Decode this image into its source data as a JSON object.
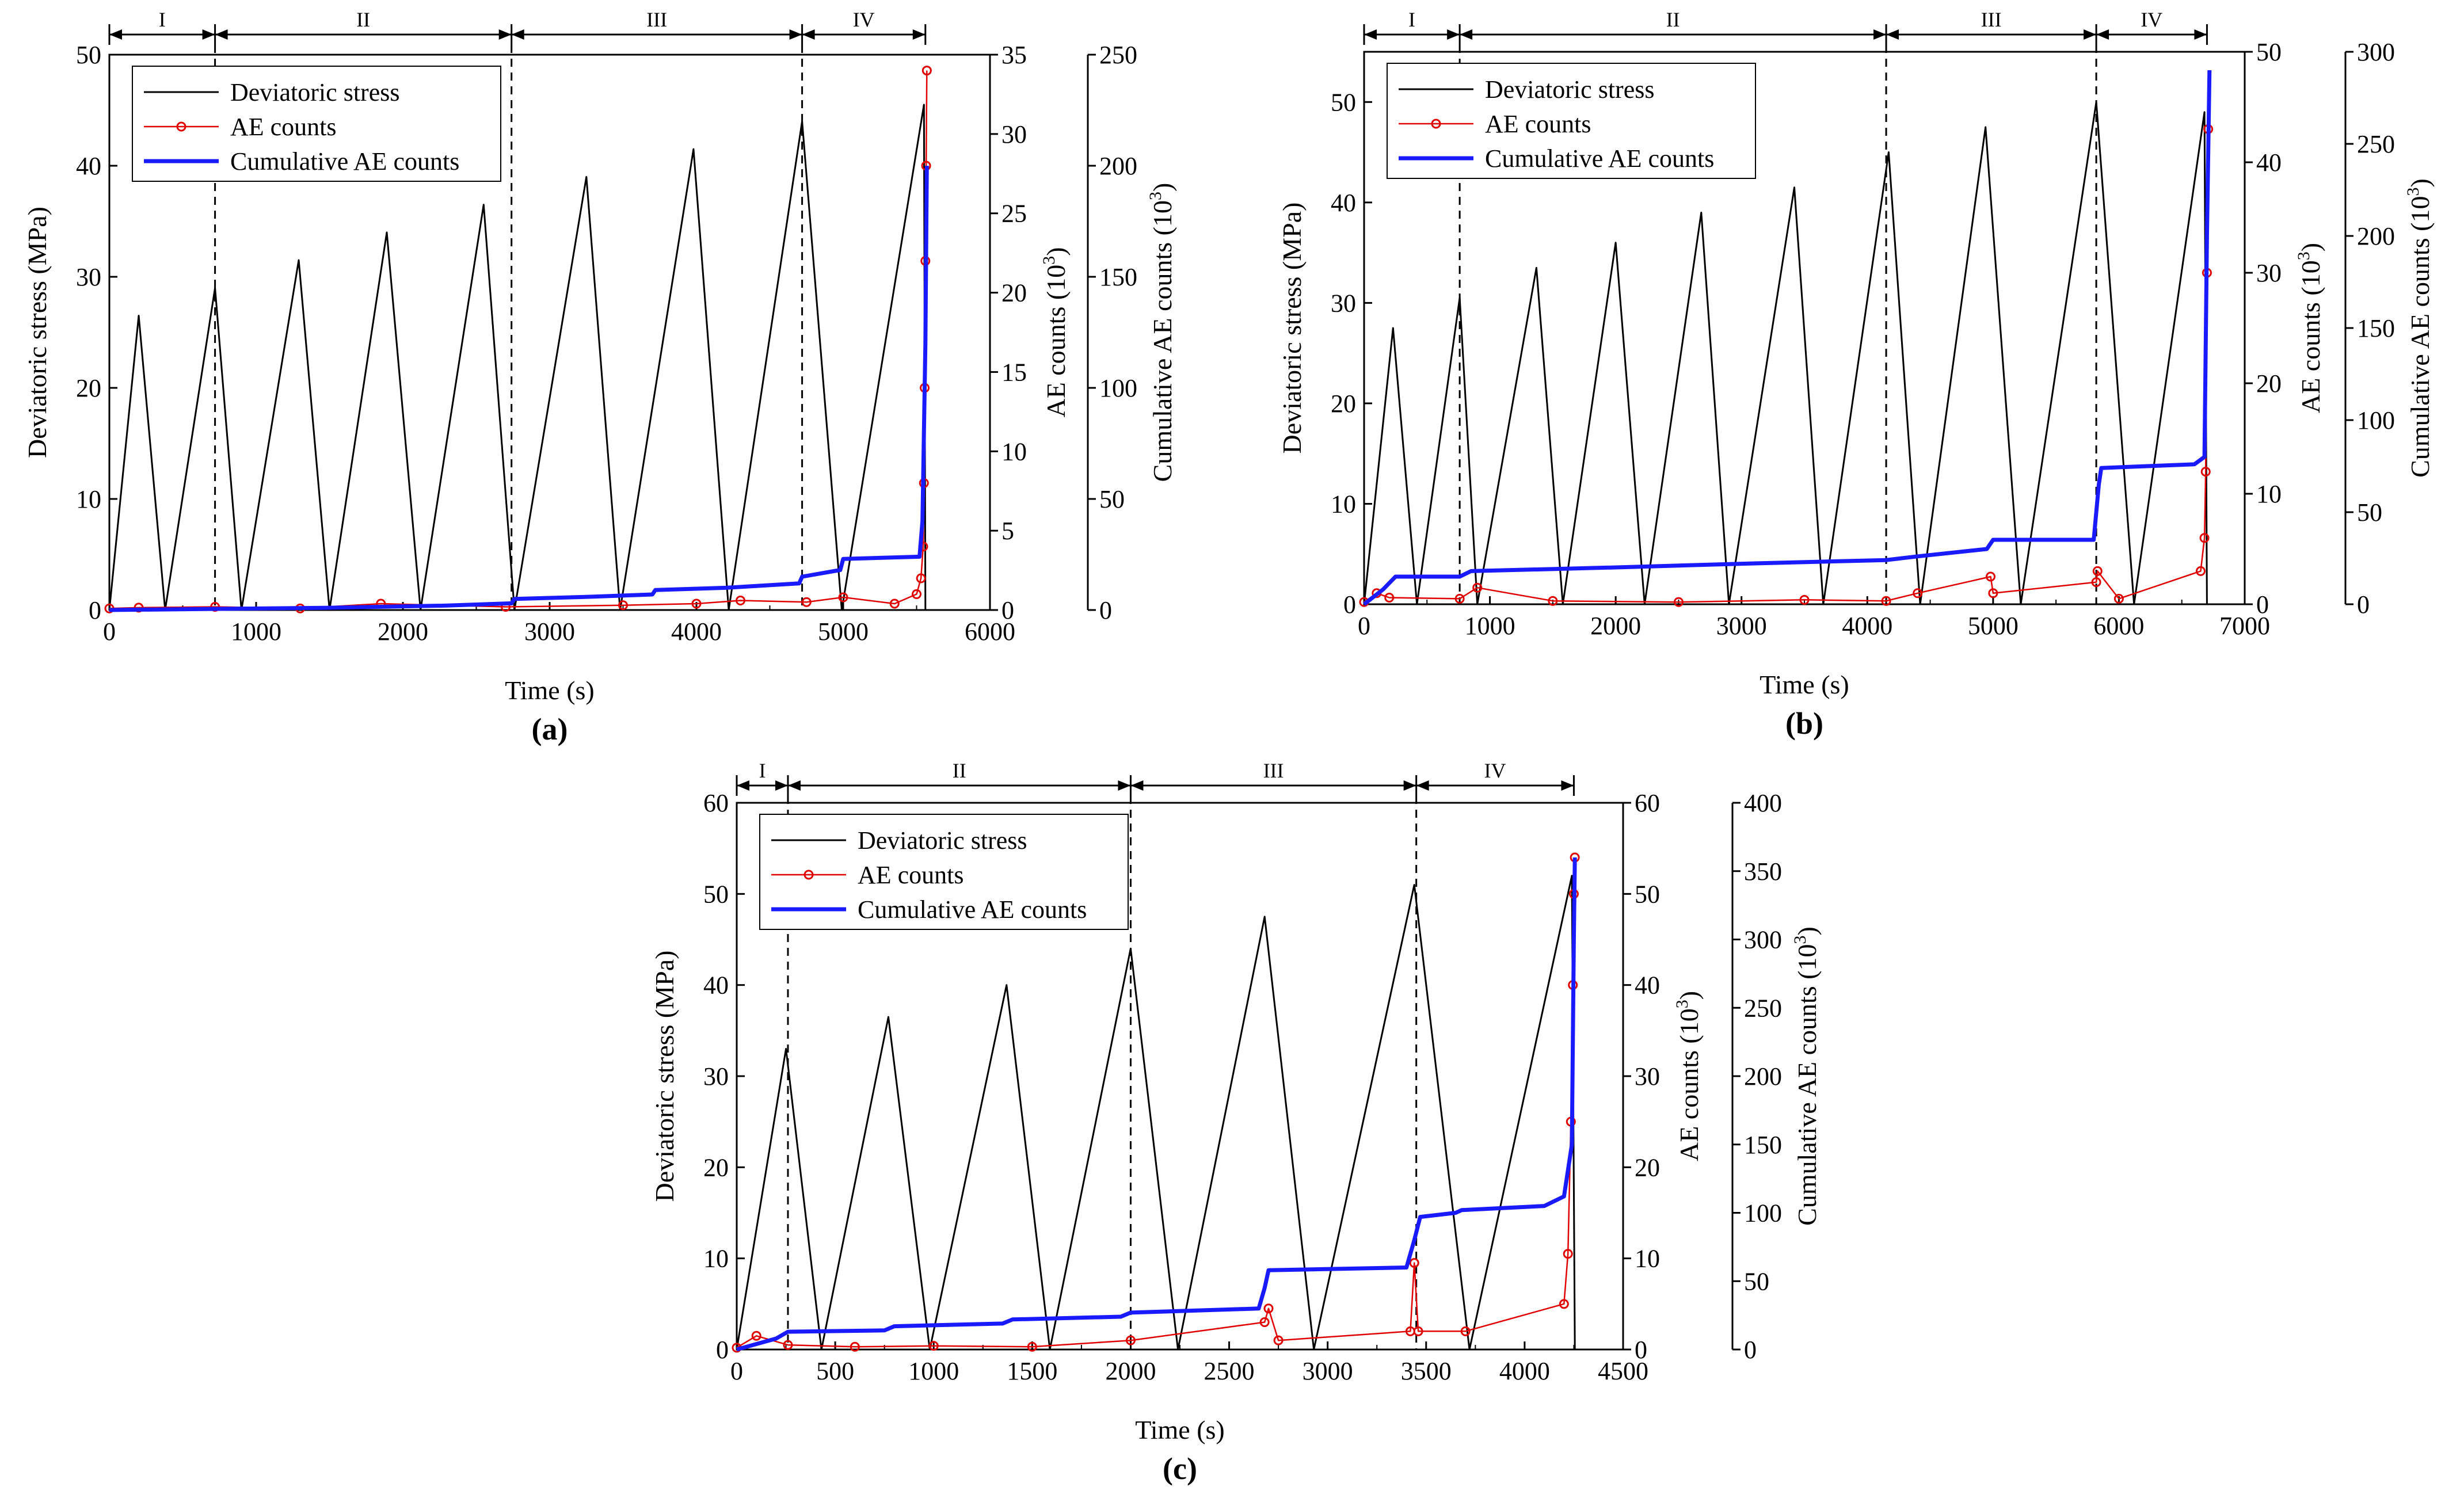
{
  "colors": {
    "stress": "#000000",
    "ae": "#e00000",
    "cumulative": "#1a1aff",
    "axis": "#000000",
    "boundary": "#000000"
  },
  "chart_data": [
    {
      "type": "line",
      "panel_label": "(a)",
      "xlabel": "Time (s)",
      "ylabel_left": "Deviatoric stress (MPa)",
      "ylabel_ae": "AE counts (10",
      "ylabel_cum": "Cumulative AE counts (10",
      "ylabel_exp": "3",
      "ylabel_close": ")",
      "xlim": [
        0,
        6000
      ],
      "x_ticks": [
        0,
        1000,
        2000,
        3000,
        4000,
        5000,
        6000
      ],
      "x_tick_labels": [
        "0",
        "1000",
        "2000",
        "3000",
        "4000",
        "5000",
        "6000"
      ],
      "ylim_left": [
        0,
        50
      ],
      "y_left_ticks": [
        0,
        10,
        20,
        30,
        40,
        50
      ],
      "y_left_tick_labels": [
        "0",
        "10",
        "20",
        "30",
        "40",
        "50"
      ],
      "ylim_ae": [
        0,
        35
      ],
      "y_ae_ticks": [
        0,
        5,
        10,
        15,
        20,
        25,
        30,
        35
      ],
      "y_ae_tick_labels": [
        "0",
        "5",
        "10",
        "15",
        "20",
        "25",
        "30",
        "35"
      ],
      "ylim_cum": [
        0,
        250
      ],
      "y_cum_ticks": [
        0,
        50,
        100,
        150,
        200,
        250
      ],
      "y_cum_tick_labels": [
        "0",
        "50",
        "100",
        "150",
        "200",
        "250"
      ],
      "legend": [
        "Deviatoric stress",
        "AE counts",
        "Cumulative AE counts"
      ],
      "legend_position": "top-left",
      "stage_boundaries": [
        0,
        720,
        2740,
        4720,
        5560
      ],
      "stage_labels": [
        "I",
        "II",
        "III",
        "IV"
      ],
      "series": [
        {
          "name": "Deviatoric stress",
          "axis": "left",
          "x": [
            0,
            200,
            380,
            720,
            900,
            1290,
            1500,
            1890,
            2120,
            2550,
            2760,
            3250,
            3480,
            3980,
            4220,
            4720,
            4990,
            5550,
            5560
          ],
          "values": [
            0,
            26.5,
            0,
            29,
            0,
            31.5,
            0,
            34,
            0,
            36.5,
            0,
            39,
            0,
            41.5,
            0,
            44,
            0,
            45.5,
            0
          ]
        },
        {
          "name": "AE counts",
          "axis": "ae",
          "x": [
            0,
            200,
            720,
            1300,
            1850,
            2700,
            3500,
            4000,
            4300,
            4750,
            5000,
            5350,
            5500,
            5530,
            5545,
            5550,
            5555,
            5560,
            5565,
            5570
          ],
          "values": [
            0.1,
            0.15,
            0.2,
            0.1,
            0.4,
            0.2,
            0.3,
            0.4,
            0.6,
            0.5,
            0.8,
            0.4,
            1.0,
            2.0,
            4.0,
            8.0,
            14.0,
            22.0,
            28.0,
            34.0
          ]
        },
        {
          "name": "Cumulative AE counts",
          "axis": "cum",
          "x": [
            0,
            700,
            1500,
            2300,
            2740,
            2760,
            3300,
            3700,
            3720,
            4200,
            4700,
            4720,
            4980,
            5000,
            5520,
            5540,
            5560,
            5570
          ],
          "values": [
            0,
            0.5,
            1,
            2,
            3,
            5,
            6,
            7,
            9,
            10,
            12,
            15,
            18,
            23,
            24,
            40,
            120,
            200
          ]
        }
      ]
    },
    {
      "type": "line",
      "panel_label": "(b)",
      "xlabel": "Time (s)",
      "ylabel_left": "Deviatoric stress (MPa)",
      "ylabel_ae": "AE counts (10",
      "ylabel_cum": "Cumulative AE counts (10",
      "ylabel_exp": "3",
      "ylabel_close": ")",
      "xlim": [
        0,
        7000
      ],
      "x_ticks": [
        0,
        1000,
        2000,
        3000,
        4000,
        5000,
        6000,
        7000
      ],
      "x_tick_labels": [
        "0",
        "1000",
        "2000",
        "3000",
        "4000",
        "5000",
        "6000",
        "7000"
      ],
      "ylim_left": [
        0,
        55
      ],
      "y_left_ticks": [
        0,
        10,
        20,
        30,
        40,
        50
      ],
      "y_left_tick_labels": [
        "0",
        "10",
        "20",
        "30",
        "40",
        "50"
      ],
      "ylim_ae": [
        0,
        50
      ],
      "y_ae_ticks": [
        0,
        10,
        20,
        30,
        40,
        50
      ],
      "y_ae_tick_labels": [
        "0",
        "10",
        "20",
        "30",
        "40",
        "50"
      ],
      "ylim_cum": [
        0,
        300
      ],
      "y_cum_ticks": [
        0,
        50,
        100,
        150,
        200,
        250,
        300
      ],
      "y_cum_tick_labels": [
        "0",
        "50",
        "100",
        "150",
        "200",
        "250",
        "300"
      ],
      "legend": [
        "Deviatoric stress",
        "AE counts",
        "Cumulative AE counts"
      ],
      "legend_position": "top-left",
      "stage_boundaries": [
        0,
        760,
        4150,
        5820,
        6700
      ],
      "stage_labels": [
        "I",
        "II",
        "III",
        "IV"
      ],
      "series": [
        {
          "name": "Deviatoric stress",
          "axis": "left",
          "x": [
            0,
            230,
            420,
            760,
            900,
            1370,
            1580,
            2000,
            2230,
            2680,
            2900,
            3420,
            3650,
            4170,
            4420,
            4940,
            5220,
            5820,
            6120,
            6680,
            6700
          ],
          "values": [
            0,
            27.5,
            0,
            30.5,
            0,
            33.5,
            0,
            36,
            0,
            39,
            0,
            41.5,
            0,
            45,
            0,
            47.5,
            0,
            50,
            0,
            49,
            0
          ]
        },
        {
          "name": "AE counts",
          "axis": "ae",
          "x": [
            0,
            100,
            200,
            760,
            900,
            1500,
            2500,
            3500,
            4150,
            4400,
            4980,
            5000,
            5820,
            5830,
            6000,
            6650,
            6680,
            6690,
            6700,
            6710
          ],
          "values": [
            0.2,
            1.0,
            0.6,
            0.5,
            1.5,
            0.3,
            0.2,
            0.4,
            0.3,
            1.0,
            2.5,
            1.0,
            2.0,
            3.0,
            0.5,
            3.0,
            6.0,
            12.0,
            30.0,
            43.0
          ]
        },
        {
          "name": "Cumulative AE counts",
          "axis": "cum",
          "x": [
            0,
            150,
            250,
            760,
            850,
            2000,
            3000,
            4150,
            4400,
            4950,
            5000,
            5800,
            5840,
            5860,
            6600,
            6680,
            6700,
            6720
          ],
          "values": [
            0,
            8,
            15,
            15,
            18,
            20,
            22,
            24,
            26,
            30,
            35,
            35,
            65,
            74,
            76,
            80,
            200,
            290
          ]
        }
      ]
    },
    {
      "type": "line",
      "panel_label": "(c)",
      "xlabel": "Time (s)",
      "ylabel_left": "Deviatoric stress (MPa)",
      "ylabel_ae": "AE counts (10",
      "ylabel_cum": "Cumulative AE counts (10",
      "ylabel_exp": "3",
      "ylabel_close": ")",
      "xlim": [
        0,
        4500
      ],
      "x_ticks": [
        0,
        500,
        1000,
        1500,
        2000,
        2500,
        3000,
        3500,
        4000,
        4500
      ],
      "x_tick_labels": [
        "0",
        "500",
        "1000",
        "1500",
        "2000",
        "2500",
        "3000",
        "3500",
        "4000",
        "4500"
      ],
      "ylim_left": [
        0,
        60
      ],
      "y_left_ticks": [
        0,
        10,
        20,
        30,
        40,
        50,
        60
      ],
      "y_left_tick_labels": [
        "0",
        "10",
        "20",
        "30",
        "40",
        "50",
        "60"
      ],
      "ylim_ae": [
        0,
        60
      ],
      "y_ae_ticks": [
        0,
        10,
        20,
        30,
        40,
        50,
        60
      ],
      "y_ae_tick_labels": [
        "0",
        "10",
        "20",
        "30",
        "40",
        "50",
        "60"
      ],
      "ylim_cum": [
        0,
        400
      ],
      "y_cum_ticks": [
        0,
        50,
        100,
        150,
        200,
        250,
        300,
        350,
        400
      ],
      "y_cum_tick_labels": [
        "0",
        "50",
        "100",
        "150",
        "200",
        "250",
        "300",
        "350",
        "400"
      ],
      "legend": [
        "Deviatoric stress",
        "AE counts",
        "Cumulative AE counts"
      ],
      "legend_position": "top-left",
      "stage_boundaries": [
        0,
        260,
        2000,
        3450,
        4250
      ],
      "stage_labels": [
        "I",
        "II",
        "III",
        "IV"
      ],
      "series": [
        {
          "name": "Deviatoric stress",
          "axis": "left",
          "x": [
            0,
            250,
            430,
            770,
            980,
            1370,
            1590,
            2000,
            2240,
            2680,
            2930,
            3440,
            3720,
            4240,
            4255
          ],
          "values": [
            0,
            33,
            0,
            36.5,
            0,
            40,
            0,
            44,
            0,
            47.5,
            0,
            51,
            0,
            52,
            0
          ]
        },
        {
          "name": "AE counts",
          "axis": "ae",
          "x": [
            0,
            100,
            260,
            600,
            1000,
            1500,
            2000,
            2680,
            2700,
            2750,
            3420,
            3440,
            3460,
            3700,
            4200,
            4220,
            4235,
            4245,
            4250,
            4255
          ],
          "values": [
            0.2,
            1.5,
            0.5,
            0.3,
            0.4,
            0.3,
            1.0,
            3.0,
            4.5,
            1.0,
            2.0,
            9.5,
            2.0,
            2.0,
            5.0,
            10.5,
            25.0,
            40.0,
            50.0,
            54.0
          ]
        },
        {
          "name": "Cumulative AE counts",
          "axis": "cum",
          "x": [
            0,
            200,
            260,
            750,
            800,
            1350,
            1400,
            1950,
            2000,
            2650,
            2680,
            2700,
            3400,
            3440,
            3470,
            3650,
            3680,
            4100,
            4200,
            4240,
            4250,
            4255
          ],
          "values": [
            0,
            8,
            13,
            14,
            17,
            19,
            22,
            24,
            27,
            30,
            45,
            58,
            60,
            80,
            97,
            100,
            102,
            105,
            112,
            150,
            300,
            360
          ]
        }
      ]
    }
  ]
}
